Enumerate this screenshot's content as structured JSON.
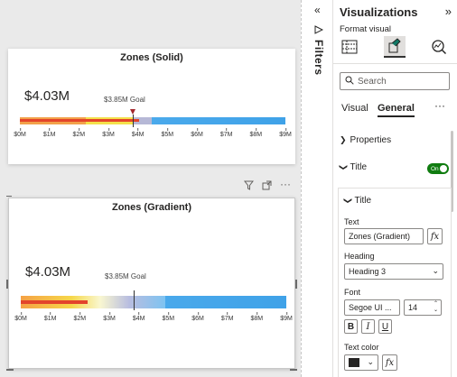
{
  "canvas": {
    "visual_solid": {
      "title": "Zones (Solid)",
      "value": "$4.03M",
      "goal_label": "$3.85M Goal",
      "ticks": [
        "$0M",
        "$1M",
        "$2M",
        "$3M",
        "$4M",
        "$5M",
        "$6M",
        "$7M",
        "$8M",
        "$9M"
      ]
    },
    "visual_gradient": {
      "title": "Zones (Gradient)",
      "value": "$4.03M",
      "goal_label": "$3.85M Goal",
      "ticks": [
        "$0M",
        "$1M",
        "$2M",
        "$3M",
        "$4M",
        "$5M",
        "$6M",
        "$7M",
        "$8M",
        "$9M"
      ]
    },
    "header_icons": [
      "filter-icon",
      "focus-mode-icon",
      "more-options-icon"
    ]
  },
  "filters": {
    "label": "Filters",
    "collapse_glyph": "«"
  },
  "viz_pane": {
    "title": "Visualizations",
    "expand_glyph": "»",
    "format_visual_label": "Format visual",
    "search_placeholder": "Search",
    "tabs": {
      "visual": "Visual",
      "general": "General",
      "more": "···"
    },
    "properties_label": "Properties",
    "title_section_label": "Title",
    "title_toggle": "On",
    "title_card": {
      "header": "Title",
      "text_label": "Text",
      "text_value": "Zones (Gradient)",
      "heading_label": "Heading",
      "heading_value": "Heading 3",
      "font_label": "Font",
      "font_value": "Segoe UI ...",
      "font_size": "14",
      "bold": "B",
      "italic": "I",
      "underline": "U",
      "text_color_label": "Text color",
      "fx": "fx"
    }
  },
  "colors": {
    "accent_toggle": "#107c10",
    "goal_marker": "#a4262c",
    "bar_fill": "#e3442b"
  }
}
